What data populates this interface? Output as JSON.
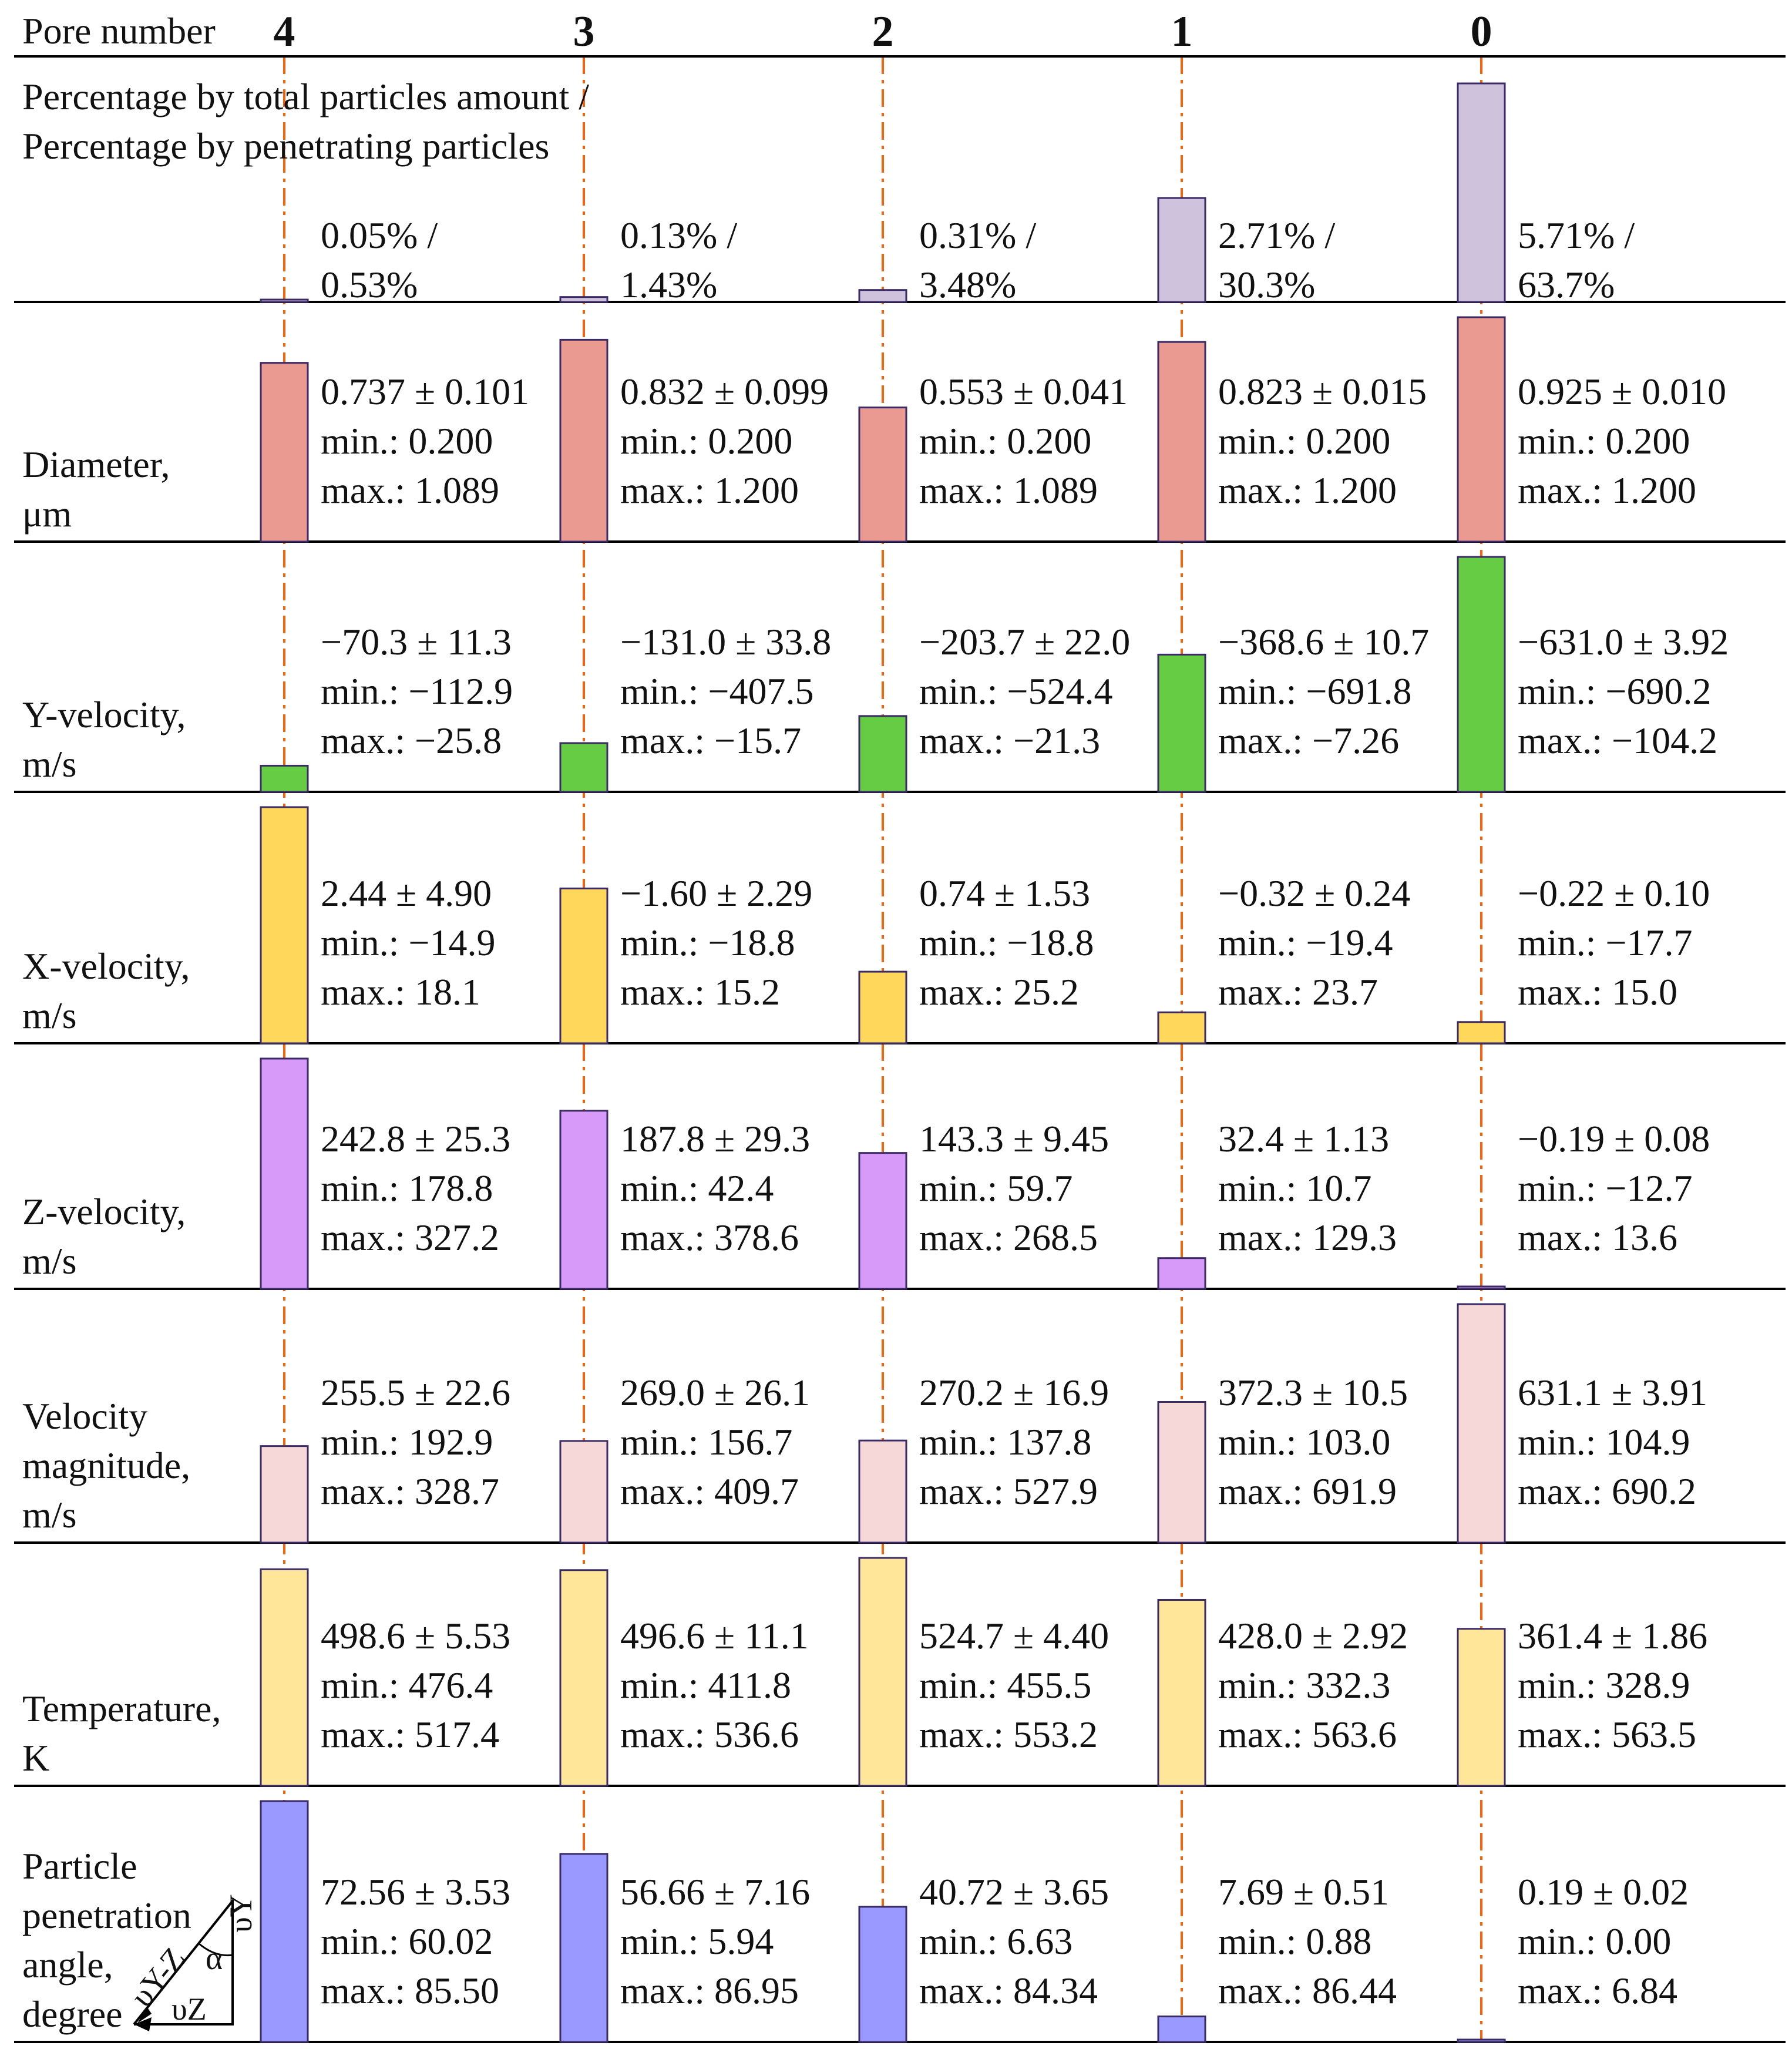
{
  "header": {
    "label": "Pore number",
    "pores": [
      "4",
      "3",
      "2",
      "1",
      "0"
    ]
  },
  "colors": {
    "guide_line": "#ee6611",
    "bar_stroke": "#3a2a66",
    "rule": "#000000"
  },
  "chart_data": {
    "type": "bar",
    "layout": "small-multiples",
    "categories": [
      "4",
      "3",
      "2",
      "1",
      "0"
    ],
    "rows": [
      {
        "key": "percentage",
        "label_lines": [
          "Percentage by total particles amount /",
          "Percentage by penetrating particles"
        ],
        "color": "#cfc2dc",
        "bar_values": [
          0.53,
          1.43,
          3.48,
          30.3,
          63.7
        ],
        "annotations": [
          [
            "0.05% /",
            "0.53%"
          ],
          [
            "0.13% /",
            "1.43%"
          ],
          [
            "0.31% /",
            "3.48%"
          ],
          [
            "2.71% /",
            "30.3%"
          ],
          [
            "5.71% /",
            "63.7%"
          ]
        ]
      },
      {
        "key": "diameter",
        "label_lines": [
          "Diameter,",
          "μm"
        ],
        "color": "#eb9a92",
        "bar_values": [
          0.737,
          0.832,
          0.553,
          0.823,
          0.925
        ],
        "annotations": [
          [
            "0.737 ± 0.101",
            "min.: 0.200",
            "max.: 1.089"
          ],
          [
            "0.832 ± 0.099",
            "min.: 0.200",
            "max.: 1.200"
          ],
          [
            "0.553 ± 0.041",
            "min.: 0.200",
            "max.: 1.089"
          ],
          [
            "0.823 ± 0.015",
            "min.: 0.200",
            "max.: 1.200"
          ],
          [
            "0.925 ± 0.010",
            "min.: 0.200",
            "max.: 1.200"
          ]
        ]
      },
      {
        "key": "y_velocity",
        "label_lines": [
          "Y-velocity,",
          "m/s"
        ],
        "color": "#66cc44",
        "bar_values": [
          -70.3,
          -131.0,
          -203.7,
          -368.6,
          -631.0
        ],
        "annotations": [
          [
            "−70.3 ± 11.3",
            "min.: −112.9",
            "max.: −25.8"
          ],
          [
            "−131.0 ± 33.8",
            "min.: −407.5",
            "max.: −15.7"
          ],
          [
            "−203.7 ± 22.0",
            "min.: −524.4",
            "max.: −21.3"
          ],
          [
            "−368.6 ± 10.7",
            "min.: −691.8",
            "max.: −7.26"
          ],
          [
            "−631.0 ± 3.92",
            "min.: −690.2",
            "max.: −104.2"
          ]
        ]
      },
      {
        "key": "x_velocity",
        "label_lines": [
          "X-velocity,",
          "m/s"
        ],
        "color": "#ffd75a",
        "bar_values": [
          2.44,
          -1.6,
          0.74,
          -0.32,
          -0.22
        ],
        "annotations": [
          [
            "2.44 ± 4.90",
            "min.: −14.9",
            "max.: 18.1"
          ],
          [
            "−1.60 ± 2.29",
            "min.: −18.8",
            "max.: 15.2"
          ],
          [
            "0.74 ± 1.53",
            "min.: −18.8",
            "max.: 25.2"
          ],
          [
            "−0.32 ± 0.24",
            "min.: −19.4",
            "max.: 23.7"
          ],
          [
            "−0.22 ± 0.10",
            "min.: −17.7",
            "max.: 15.0"
          ]
        ]
      },
      {
        "key": "z_velocity",
        "label_lines": [
          "Z-velocity,",
          "m/s"
        ],
        "color": "#d89af8",
        "bar_values": [
          242.8,
          187.8,
          143.3,
          32.4,
          -0.19
        ],
        "annotations": [
          [
            "242.8 ± 25.3",
            "min.: 178.8",
            "max.: 327.2"
          ],
          [
            "187.8 ± 29.3",
            "min.: 42.4",
            "max.: 378.6"
          ],
          [
            "143.3 ± 9.45",
            "min.: 59.7",
            "max.: 268.5"
          ],
          [
            "32.4 ± 1.13",
            "min.: 10.7",
            "max.: 129.3"
          ],
          [
            "−0.19 ± 0.08",
            "min.: −12.7",
            "max.: 13.6"
          ]
        ]
      },
      {
        "key": "velocity_magnitude",
        "label_lines": [
          "Velocity",
          "magnitude,",
          "m/s"
        ],
        "color": "#f6d8d8",
        "bar_values": [
          255.5,
          269.0,
          270.2,
          372.3,
          631.1
        ],
        "annotations": [
          [
            "255.5 ± 22.6",
            "min.: 192.9",
            "max.: 328.7"
          ],
          [
            "269.0 ± 26.1",
            "min.: 156.7",
            "max.: 409.7"
          ],
          [
            "270.2 ± 16.9",
            "min.: 137.8",
            "max.: 527.9"
          ],
          [
            "372.3 ± 10.5",
            "min.: 103.0",
            "max.: 691.9"
          ],
          [
            "631.1 ± 3.91",
            "min.: 104.9",
            "max.: 690.2"
          ]
        ]
      },
      {
        "key": "temperature",
        "label_lines": [
          "Temperature,",
          "K"
        ],
        "color": "#ffe699",
        "bar_values": [
          498.6,
          496.6,
          524.7,
          428.0,
          361.4
        ],
        "annotations": [
          [
            "498.6 ± 5.53",
            "min.: 476.4",
            "max.: 517.4"
          ],
          [
            "496.6 ± 11.1",
            "min.: 411.8",
            "max.: 536.6"
          ],
          [
            "524.7 ± 4.40",
            "min.: 455.5",
            "max.: 553.2"
          ],
          [
            "428.0 ± 2.92",
            "min.: 332.3",
            "max.: 563.6"
          ],
          [
            "361.4 ± 1.86",
            "min.: 328.9",
            "max.: 563.5"
          ]
        ]
      },
      {
        "key": "penetration_angle",
        "label_lines": [
          "Particle",
          "penetration",
          "angle,",
          "degree"
        ],
        "color": "#9999ff",
        "bar_values": [
          72.56,
          56.66,
          40.72,
          7.69,
          0.19
        ],
        "annotations": [
          [
            "72.56 ± 3.53",
            "min.: 60.02",
            "max.: 85.50"
          ],
          [
            "56.66 ± 7.16",
            "min.: 5.94",
            "max.: 86.95"
          ],
          [
            "40.72 ± 3.65",
            "min.: 6.63",
            "max.: 84.34"
          ],
          [
            "7.69 ± 0.51",
            "min.: 0.88",
            "max.: 86.44"
          ],
          [
            "0.19 ± 0.02",
            "min.: 0.00",
            "max.: 6.84"
          ]
        ]
      }
    ]
  },
  "angle_diagram": {
    "hypotenuse_label": "υY-Z",
    "vertical_label": "υY",
    "horizontal_label": "υZ",
    "angle_label": "α"
  }
}
